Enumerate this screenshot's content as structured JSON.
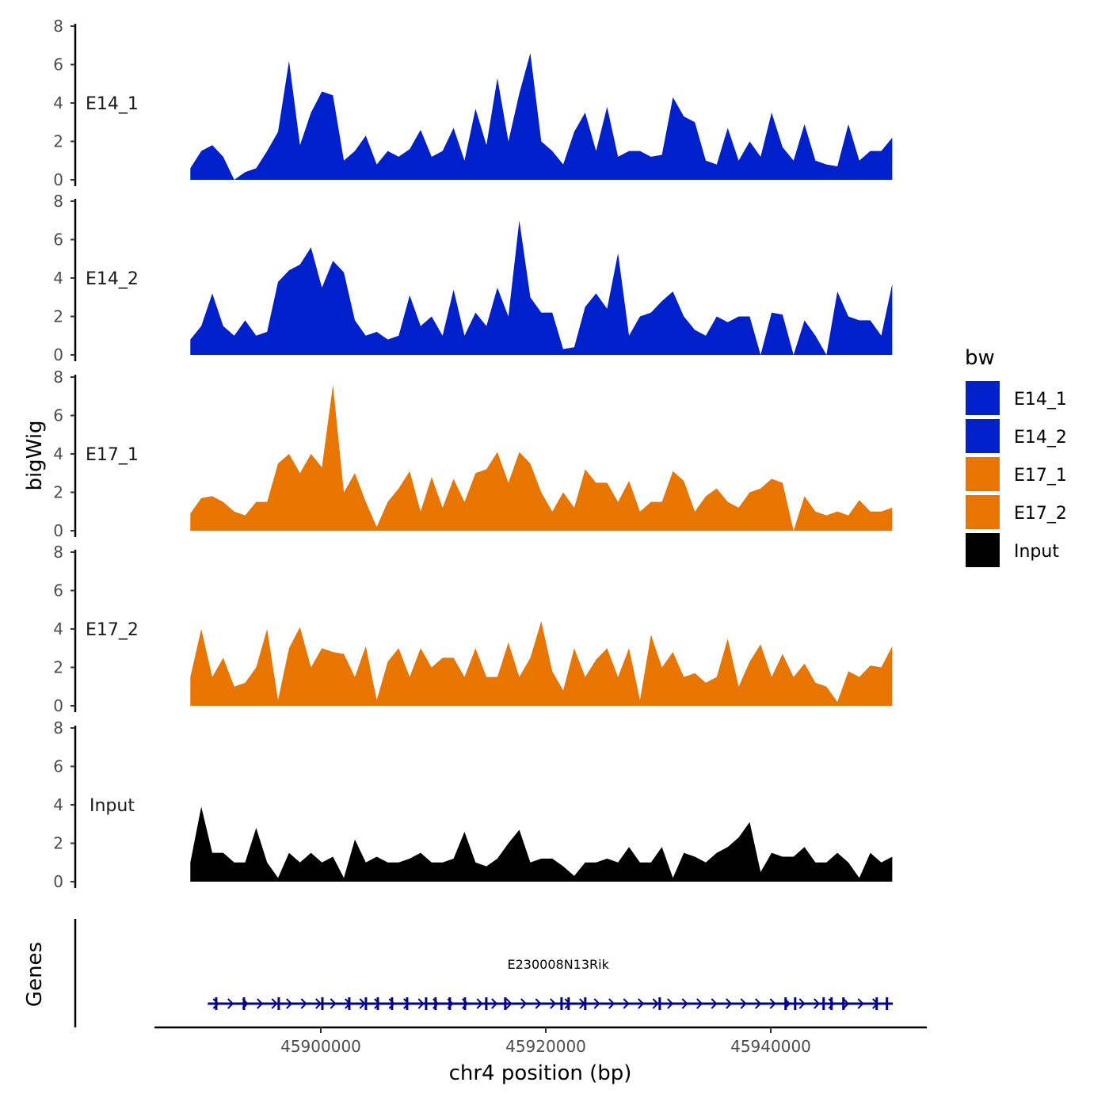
{
  "chart_data": {
    "type": "area",
    "ylabel": "bigWig",
    "xlabel": "chr4 position (bp)",
    "ylim": [
      0,
      8
    ],
    "yticks": [
      0,
      2,
      4,
      6,
      8
    ],
    "xticks": [
      45900000,
      45920000,
      45940000
    ],
    "xtick_labels": [
      "45900000",
      "45920000",
      "45940000"
    ],
    "x_range": [
      45888400,
      45950800
    ],
    "grid": false,
    "legend": {
      "title": "bw",
      "placement": "right",
      "entries": [
        {
          "label": "E14_1",
          "color": "#0020CC"
        },
        {
          "label": "E14_2",
          "color": "#0020CC"
        },
        {
          "label": "E17_1",
          "color": "#E87500"
        },
        {
          "label": "E17_2",
          "color": "#E87500"
        },
        {
          "label": "Input",
          "color": "#000000"
        }
      ]
    },
    "series": [
      {
        "name": "E14_1",
        "color": "#0020CC",
        "values": [
          0.6,
          1.5,
          1.8,
          1.2,
          0,
          0.4,
          0.6,
          1.5,
          2.5,
          6.2,
          1.8,
          3.5,
          4.6,
          4.4,
          1.0,
          1.5,
          2.3,
          0.8,
          1.5,
          1.2,
          1.6,
          2.6,
          1.2,
          1.5,
          2.7,
          1.0,
          3.7,
          1.8,
          5.3,
          2.0,
          4.5,
          6.6,
          2.0,
          1.5,
          0.8,
          2.5,
          3.5,
          1.5,
          3.8,
          1.2,
          1.5,
          1.5,
          1.2,
          1.3,
          4.3,
          3.3,
          3.0,
          1.0,
          0.8,
          2.7,
          1.0,
          2.0,
          1.2,
          3.5,
          1.7,
          1.0,
          2.9,
          1.0,
          0.8,
          0.7,
          2.9,
          1.0,
          1.5,
          1.5,
          2.2
        ]
      },
      {
        "name": "E14_2",
        "color": "#0020CC",
        "values": [
          0.8,
          1.5,
          3.2,
          1.5,
          1.0,
          1.8,
          1.0,
          1.2,
          3.8,
          4.4,
          4.7,
          5.6,
          3.5,
          4.9,
          4.3,
          1.8,
          1.0,
          1.2,
          0.8,
          1.0,
          3.1,
          1.5,
          2.0,
          1.0,
          3.4,
          1.0,
          2.2,
          1.5,
          3.5,
          2.0,
          7.0,
          3.0,
          2.2,
          2.2,
          0.3,
          0.4,
          2.5,
          3.2,
          2.4,
          5.3,
          1.0,
          2.0,
          2.2,
          2.8,
          3.3,
          2.0,
          1.3,
          1.0,
          2.0,
          1.7,
          2.0,
          2.0,
          0.0,
          2.2,
          2.1,
          0.0,
          1.8,
          1.0,
          0.0,
          3.3,
          2.0,
          1.8,
          1.8,
          1.0,
          3.7
        ]
      },
      {
        "name": "E17_1",
        "color": "#E87500",
        "values": [
          0.9,
          1.7,
          1.8,
          1.5,
          1.0,
          0.8,
          1.5,
          1.5,
          3.5,
          4.0,
          3.0,
          4.0,
          3.3,
          7.6,
          2.0,
          3.0,
          1.5,
          0.2,
          1.5,
          2.2,
          3.1,
          1.0,
          2.8,
          1.2,
          2.7,
          1.5,
          3.0,
          3.2,
          4.1,
          2.5,
          4.1,
          3.5,
          2.0,
          1.0,
          2.0,
          1.2,
          3.2,
          2.5,
          2.5,
          1.5,
          2.6,
          1.0,
          1.5,
          1.5,
          3.1,
          2.6,
          1.0,
          1.8,
          2.2,
          1.5,
          1.2,
          2.0,
          2.2,
          2.7,
          2.5,
          0.0,
          1.8,
          1.0,
          0.8,
          1.0,
          0.8,
          1.6,
          1.0,
          1.0,
          1.2
        ]
      },
      {
        "name": "E17_2",
        "color": "#E87500",
        "values": [
          1.5,
          4.0,
          1.5,
          2.5,
          1.0,
          1.2,
          2.0,
          4.0,
          0.3,
          3.0,
          4.1,
          2.0,
          3.0,
          2.8,
          2.7,
          1.5,
          3.1,
          0.3,
          2.3,
          3.0,
          1.5,
          3.0,
          2.0,
          2.5,
          2.5,
          1.5,
          3.0,
          1.5,
          1.5,
          3.3,
          1.5,
          2.5,
          4.4,
          1.8,
          0.8,
          3.0,
          1.5,
          2.4,
          3.0,
          1.5,
          3.0,
          0.3,
          3.7,
          2.0,
          2.8,
          1.5,
          1.7,
          1.2,
          1.5,
          3.5,
          1.0,
          2.3,
          3.2,
          1.5,
          2.7,
          1.5,
          2.2,
          1.2,
          1.0,
          0.2,
          1.8,
          1.5,
          2.1,
          2.0,
          3.1
        ]
      },
      {
        "name": "Input",
        "color": "#000000",
        "values": [
          1.0,
          3.9,
          1.5,
          1.5,
          1.0,
          1.0,
          2.8,
          1.0,
          0.2,
          1.5,
          1.0,
          1.5,
          1.0,
          1.3,
          0.2,
          2.2,
          1.0,
          1.3,
          1.0,
          1.0,
          1.2,
          1.5,
          1.0,
          1.0,
          1.2,
          2.6,
          1.0,
          0.8,
          1.2,
          2.0,
          2.7,
          1.0,
          1.2,
          1.2,
          0.8,
          0.3,
          1.0,
          1.0,
          1.2,
          1.0,
          1.8,
          1.0,
          1.0,
          1.8,
          0.2,
          1.5,
          1.3,
          1.0,
          1.5,
          1.8,
          2.3,
          3.1,
          0.5,
          1.5,
          1.3,
          1.3,
          1.8,
          1.0,
          1.0,
          1.5,
          1.0,
          0.2,
          1.5,
          1.0,
          1.3
        ]
      }
    ],
    "genes": {
      "title": "Genes",
      "items": [
        {
          "name": "E230008N13Rik",
          "start": 45889950,
          "end": 45950850,
          "strand": "+",
          "color": "#00008B",
          "exons": [
            45890700,
            45893170,
            45896260,
            45900140,
            45902530,
            45904010,
            45905070,
            45906330,
            45907670,
            45909360,
            45910200,
            45911470,
            45912810,
            45914710,
            45916400,
            45921400,
            45922030,
            45923510,
            45930130,
            45941320,
            45942170,
            45944700,
            45945400,
            45946460,
            45949420,
            45950330
          ]
        }
      ]
    }
  }
}
